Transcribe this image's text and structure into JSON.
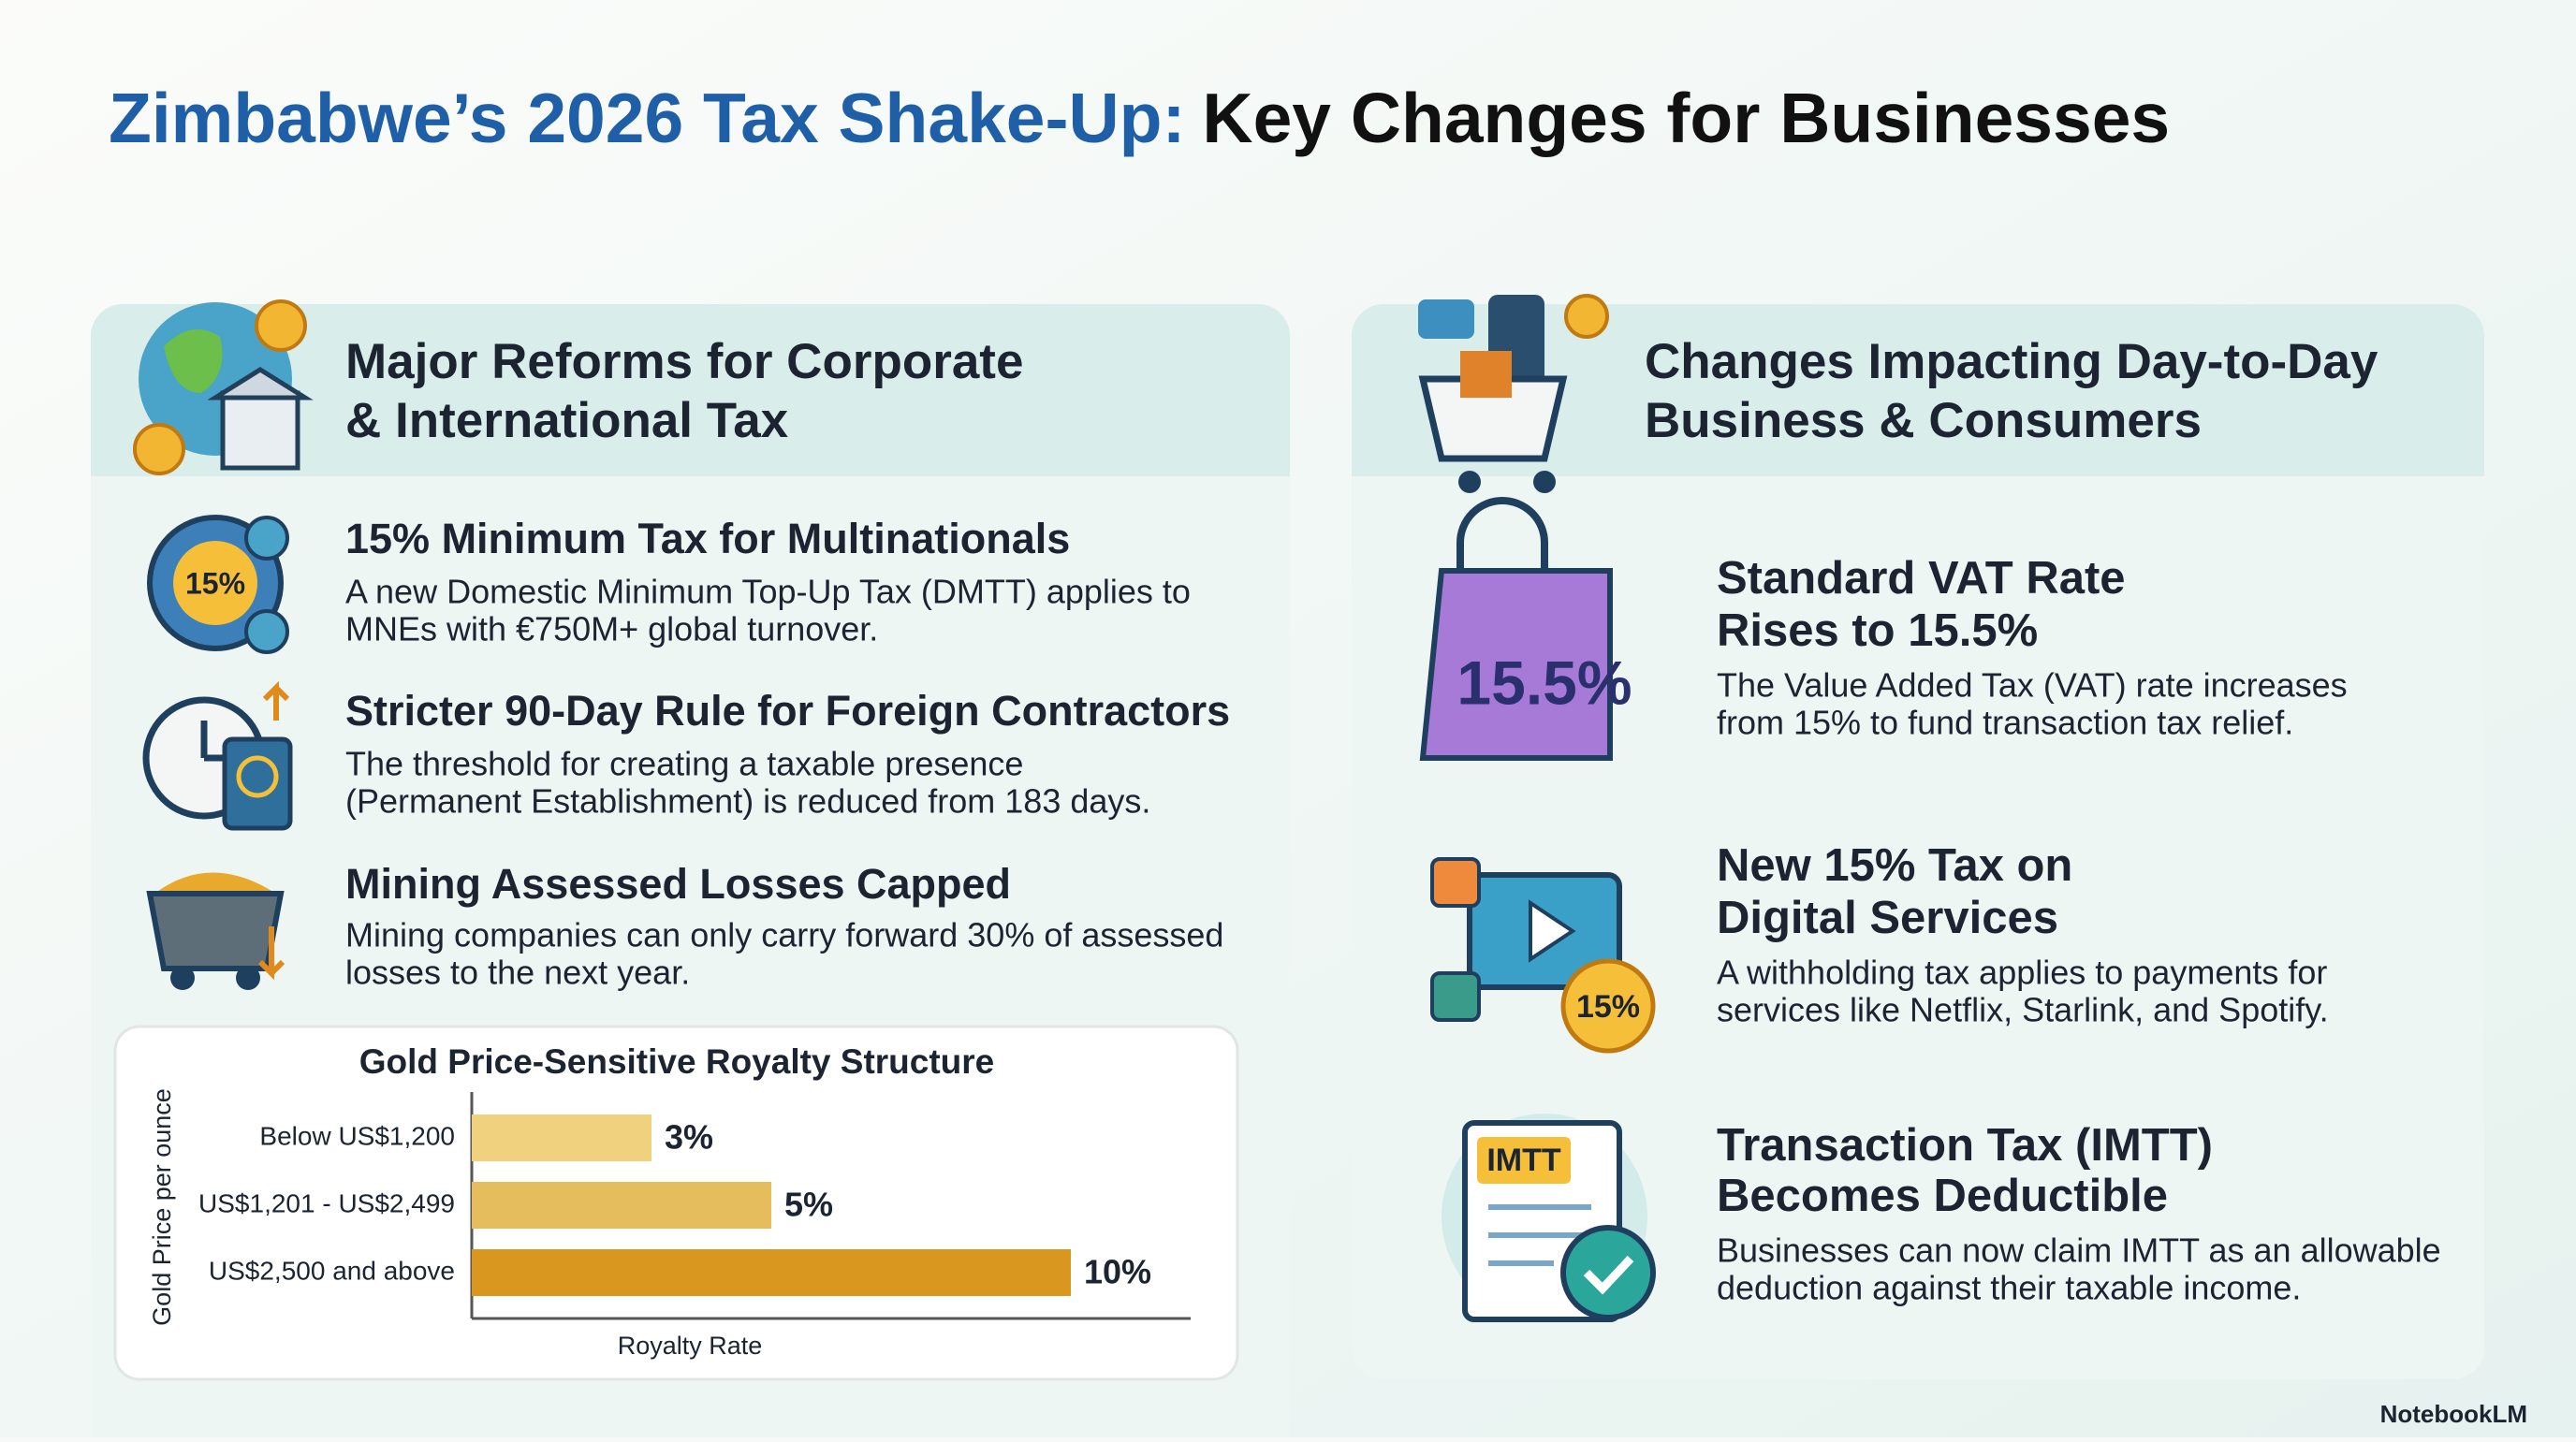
{
  "title": {
    "lead": "Zimbabwe’s 2026 Tax Shake-Up:",
    "rest": "Key Changes for Businesses"
  },
  "left": {
    "heading": [
      "Major Reforms for Corporate",
      "& International Tax"
    ],
    "items": [
      {
        "icon_label": "15%",
        "title": "15% Minimum Tax for Multinationals",
        "text": [
          "A new Domestic Minimum Top-Up Tax (DMTT) applies to",
          "MNEs with €750M+ global turnover."
        ]
      },
      {
        "title": "Stricter 90-Day Rule for Foreign Contractors",
        "text": [
          "The threshold for creating a taxable presence",
          "(Permanent Establishment) is reduced from 183 days."
        ]
      },
      {
        "title": "Mining Assessed Losses Capped",
        "text": [
          "Mining companies can only carry forward 30% of assessed",
          "losses to the next year."
        ]
      }
    ]
  },
  "right": {
    "heading": [
      "Changes Impacting Day-to-Day",
      "Business & Consumers"
    ],
    "items": [
      {
        "icon_label": "15.5%",
        "title": [
          "Standard VAT Rate",
          "Rises to 15.5%"
        ],
        "text": [
          "The Value Added Tax (VAT) rate increases",
          "from 15% to fund transaction tax relief."
        ]
      },
      {
        "icon_label": "15%",
        "title": [
          "New 15% Tax on",
          "Digital Services"
        ],
        "text": [
          "A withholding tax applies to payments for",
          "services like Netflix, Starlink, and Spotify."
        ]
      },
      {
        "icon_label": "IMTT",
        "title": [
          "Transaction Tax (IMTT)",
          "Becomes Deductible"
        ],
        "text": [
          "Businesses can now claim IMTT as an allowable",
          "deduction against their taxable income."
        ]
      }
    ]
  },
  "chart_data": {
    "type": "bar",
    "orientation": "horizontal",
    "title": "Gold Price-Sensitive Royalty Structure",
    "x_label": "Royalty Rate",
    "y_label": "Gold Price per ounce",
    "categories": [
      "Below US$1,200",
      "US$1,201 - US$2,499",
      "US$2,500 and above"
    ],
    "values": [
      3,
      5,
      10
    ],
    "value_labels": [
      "3%",
      "5%",
      "10%"
    ],
    "colors": [
      "#f0d27e",
      "#e5bd5c",
      "#d9971f"
    ],
    "xlim": [
      0,
      12
    ]
  },
  "watermark": "NotebookLM"
}
